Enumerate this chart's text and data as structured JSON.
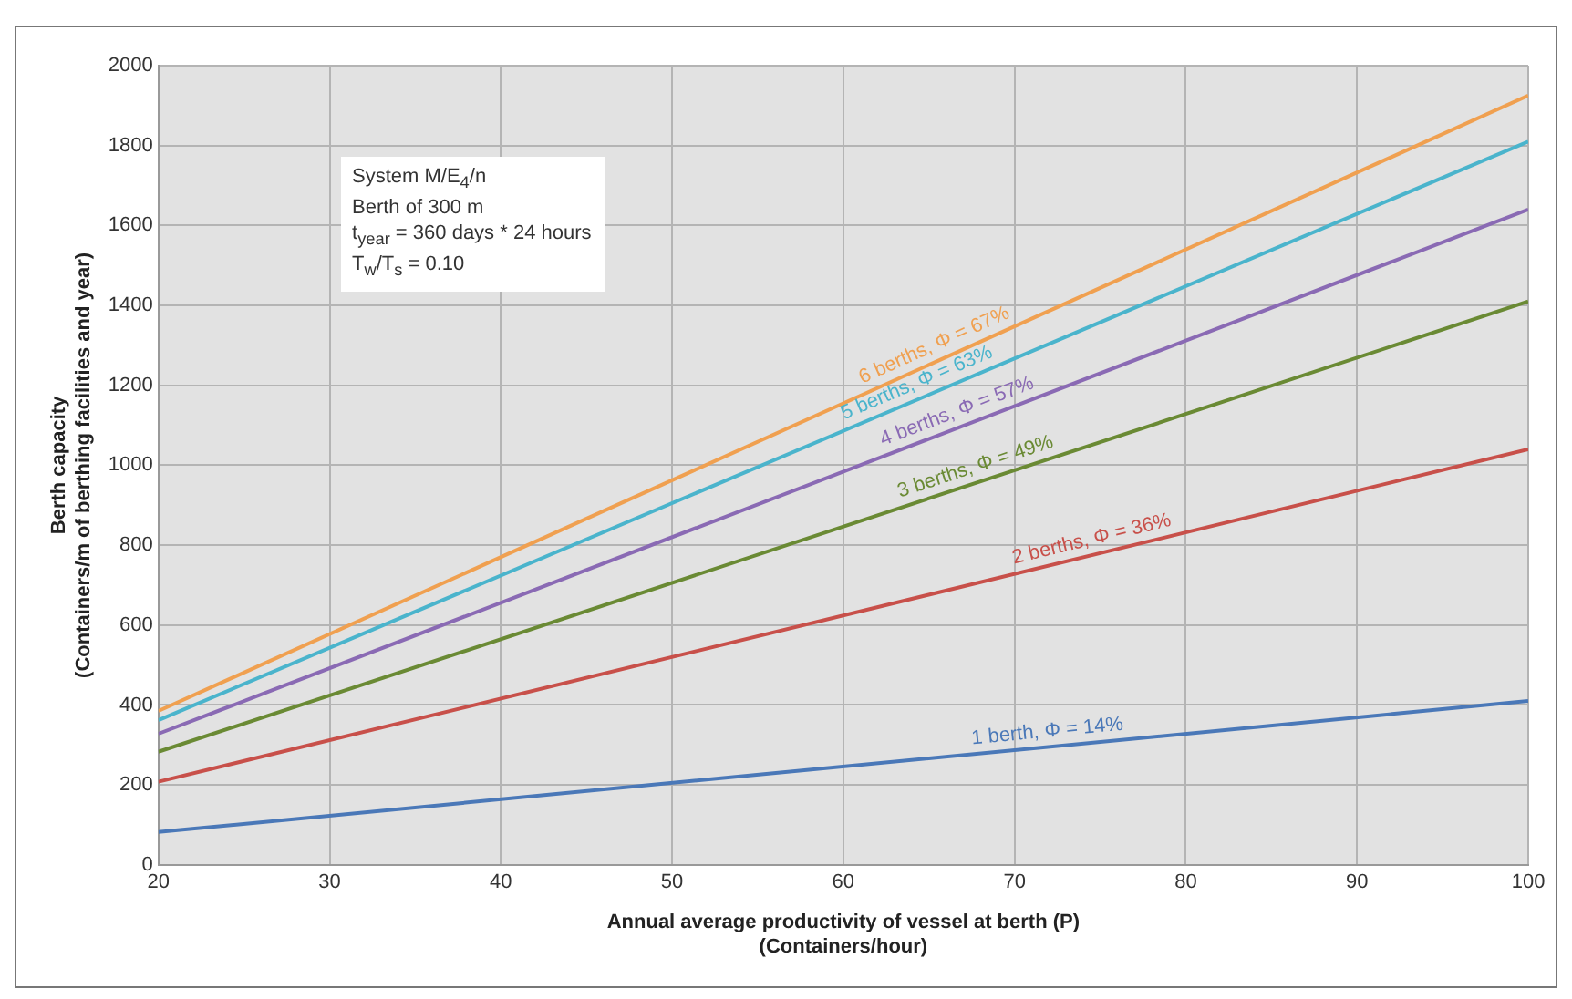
{
  "chart_data": {
    "type": "line",
    "xlabel": "Annual average productivity of vessel at berth (P)\n(Containers/hour)",
    "ylabel": "Berth capacity\n(Containers/m of berthing facilities and year)",
    "x": [
      20,
      100
    ],
    "series": [
      {
        "name": "6 berths, Φ = 67%",
        "color": "#f0a050",
        "values": [
          385,
          1925
        ]
      },
      {
        "name": "5 berths, Φ = 63%",
        "color": "#4ab4cc",
        "values": [
          362,
          1810
        ]
      },
      {
        "name": "4 berths, Φ = 57%",
        "color": "#8a6ab4",
        "values": [
          328,
          1640
        ]
      },
      {
        "name": "3 berths, Φ = 49%",
        "color": "#6a8a34",
        "values": [
          283,
          1410
        ]
      },
      {
        "name": "2 berths, Φ = 36%",
        "color": "#c8504a",
        "values": [
          208,
          1040
        ]
      },
      {
        "name": "1 berth, Φ = 14%",
        "color": "#4a78b8",
        "values": [
          82,
          410
        ]
      }
    ],
    "xlim": [
      20,
      100
    ],
    "xticks": [
      20,
      30,
      40,
      50,
      60,
      70,
      80,
      90,
      100
    ],
    "ylim": [
      0,
      2000
    ],
    "yticks": [
      0,
      200,
      400,
      600,
      800,
      1000,
      1200,
      1400,
      1600,
      1800,
      2000
    ],
    "grid": true,
    "legend": false,
    "marker": "none",
    "line_style": "solid",
    "annotations": [
      "System M/E$_{4}$/n",
      "Berth of 300 m",
      "t$_{year}$ = 360 days * 24 hours",
      "T$_{w}$/T$_{s}$ = 0.10"
    ]
  }
}
